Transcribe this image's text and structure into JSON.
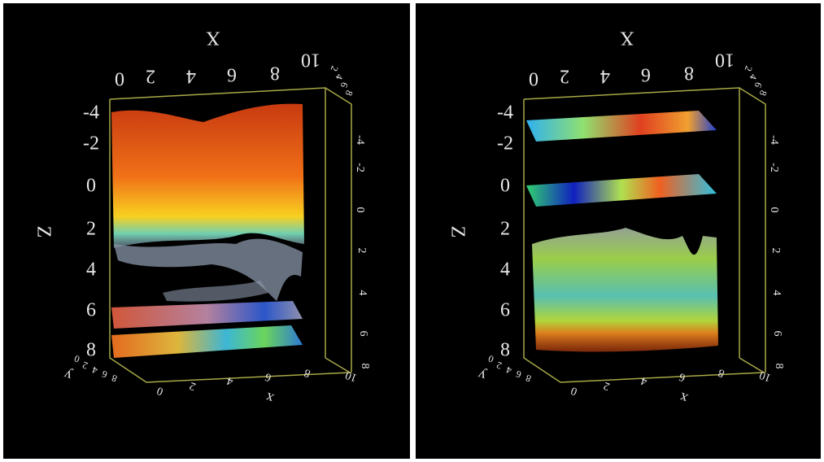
{
  "panels": [
    {
      "x_title_top": "X",
      "z_title": "Z",
      "x_title_bottom": "x",
      "y_title": "y",
      "top_x_ticks": [
        0,
        2,
        4,
        6,
        8,
        10
      ],
      "z_ticks": [
        -4,
        -2,
        0,
        2,
        4,
        6,
        8
      ],
      "right_z_ticks": [
        -4,
        -2,
        0,
        2,
        4,
        6,
        8
      ],
      "bottom_x_ticks": [
        0,
        2,
        4,
        6,
        8,
        10
      ],
      "y_ticks_left": [
        0,
        2,
        4,
        6,
        8
      ],
      "y_ticks_top": [
        2,
        4,
        6,
        8
      ]
    },
    {
      "x_title_top": "X",
      "z_title": "Z",
      "x_title_bottom": "x",
      "y_title": "y",
      "top_x_ticks": [
        0,
        2,
        4,
        6,
        8,
        10
      ],
      "z_ticks": [
        -4,
        -2,
        0,
        2,
        4,
        6,
        8
      ],
      "right_z_ticks": [
        -4,
        -2,
        0,
        2,
        4,
        6,
        8
      ],
      "bottom_x_ticks": [
        0,
        2,
        4,
        6,
        8,
        10
      ],
      "y_ticks_left": [
        0,
        2,
        4,
        6,
        8
      ],
      "y_ticks_top": [
        2,
        4,
        6,
        8
      ]
    }
  ]
}
